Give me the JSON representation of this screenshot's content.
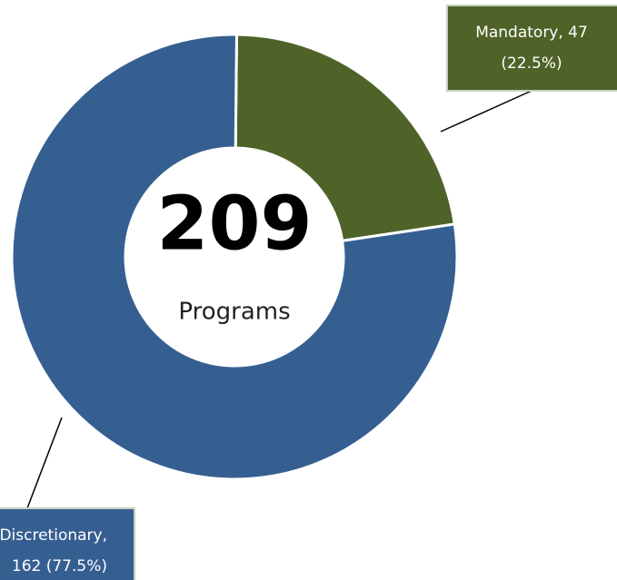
{
  "chart_data": {
    "type": "donut",
    "categories": [
      "Mandatory",
      "Discretionary"
    ],
    "values": [
      47,
      162
    ],
    "value_labels": [
      [
        "Mandatory, 47",
        "(22.5%)"
      ],
      [
        "Discretionary,",
        "162 (77.5%)"
      ]
    ],
    "colors": [
      "#4f6228",
      "#365f91"
    ],
    "center_value": 209,
    "center_label": "Programs"
  }
}
